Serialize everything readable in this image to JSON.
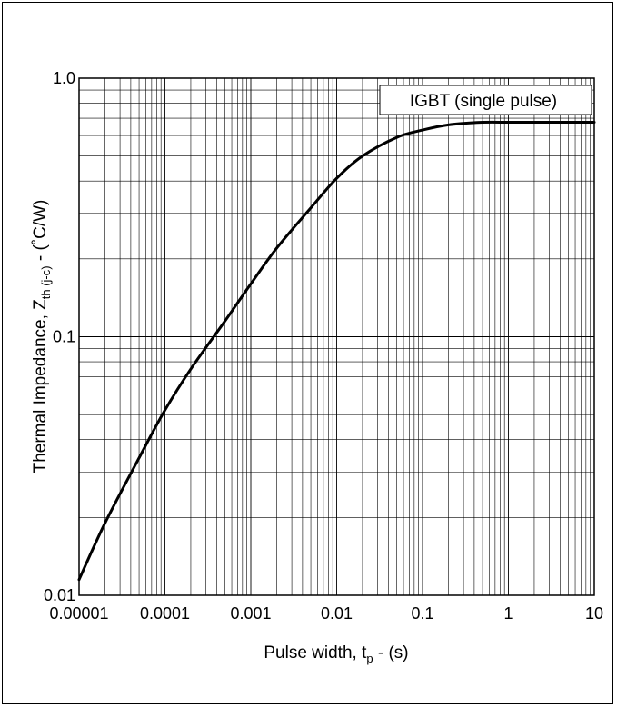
{
  "chart_data": {
    "type": "line",
    "xscale": "log",
    "yscale": "log",
    "xlim": [
      1e-05,
      10
    ],
    "ylim": [
      0.01,
      1.0
    ],
    "grid": true,
    "x_tick_labels": [
      "0.00001",
      "0.0001",
      "0.001",
      "0.01",
      "0.1",
      "1",
      "10"
    ],
    "x_tick_values": [
      1e-05,
      0.0001,
      0.001,
      0.01,
      0.1,
      1,
      10
    ],
    "y_tick_labels": [
      "0.01",
      "0.1",
      "1.0"
    ],
    "y_tick_values": [
      0.01,
      0.1,
      1.0
    ],
    "xlabel": {
      "main": "Pulse width, t",
      "sub": "p",
      "tail": " - (s)"
    },
    "ylabel": {
      "main": "Thermal Impedance, Z",
      "sub": "th (j-c)",
      "tail": " - (˚C/W)"
    },
    "legend": {
      "text": "IGBT (single pulse)",
      "placement": "top-right"
    },
    "series": [
      {
        "color": "#000000",
        "x": [
          1e-05,
          2e-05,
          5e-05,
          0.0001,
          0.0002,
          0.0005,
          0.001,
          0.002,
          0.005,
          0.01,
          0.02,
          0.05,
          0.1,
          0.2,
          0.5,
          1,
          2,
          5,
          10
        ],
        "y": [
          0.0115,
          0.019,
          0.034,
          0.052,
          0.075,
          0.115,
          0.16,
          0.22,
          0.315,
          0.41,
          0.5,
          0.59,
          0.63,
          0.66,
          0.675,
          0.675,
          0.675,
          0.675,
          0.675
        ]
      }
    ]
  }
}
